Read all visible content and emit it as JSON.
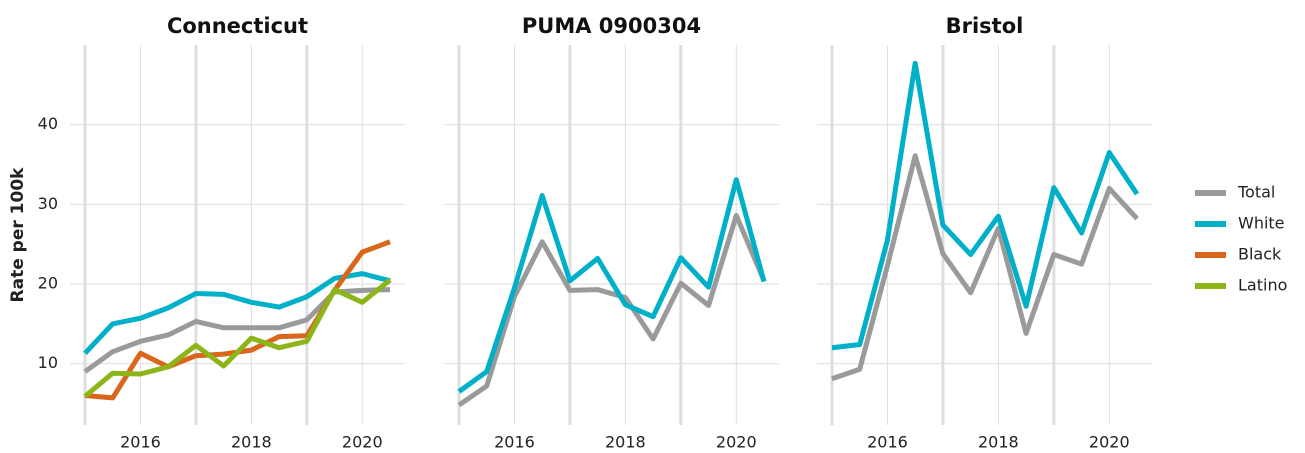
{
  "chart_data": [
    {
      "type": "line",
      "title": "Connecticut",
      "y_label": "Rate per 100k",
      "x": [
        2015,
        2015.5,
        2016,
        2016.5,
        2017,
        2017.5,
        2018,
        2018.5,
        2019,
        2019.5,
        2020,
        2020.5
      ],
      "xlim": [
        2014.73,
        2020.77
      ],
      "xticks": [
        2016,
        2018,
        2020
      ],
      "xminor": [
        2015,
        2017,
        2019
      ],
      "ylim": [
        2.3,
        50
      ],
      "yticks": [
        10,
        20,
        30,
        40
      ],
      "grid": true,
      "series": [
        {
          "name": "Total",
          "color": "#9a9a9a",
          "values": [
            9.0,
            11.5,
            12.8,
            13.6,
            15.3,
            14.5,
            14.5,
            14.5,
            15.5,
            19.0,
            19.2,
            19.3
          ]
        },
        {
          "name": "White",
          "color": "#00b0c8",
          "values": [
            11.3,
            15.0,
            15.7,
            17.0,
            18.8,
            18.7,
            17.7,
            17.1,
            18.4,
            20.7,
            21.3,
            20.4
          ]
        },
        {
          "name": "Black",
          "color": "#d9661b",
          "values": [
            6.0,
            5.7,
            11.3,
            9.6,
            11.0,
            11.2,
            11.7,
            13.4,
            13.5,
            19.2,
            24.0,
            25.3
          ]
        },
        {
          "name": "Latino",
          "color": "#8db51a",
          "values": [
            5.9,
            8.8,
            8.7,
            9.6,
            12.3,
            9.7,
            13.2,
            12.0,
            12.8,
            19.3,
            17.7,
            20.5
          ]
        }
      ]
    },
    {
      "type": "line",
      "title": "PUMA 0900304",
      "x": [
        2015,
        2015.5,
        2016,
        2016.5,
        2017,
        2017.5,
        2018,
        2018.5,
        2019,
        2019.5,
        2020,
        2020.5
      ],
      "xlim": [
        2014.73,
        2020.77
      ],
      "xticks": [
        2016,
        2018,
        2020
      ],
      "xminor": [
        2015,
        2017,
        2019
      ],
      "ylim": [
        2.3,
        50
      ],
      "yticks": [
        10,
        20,
        30,
        40
      ],
      "grid": true,
      "series": [
        {
          "name": "Total",
          "color": "#9a9a9a",
          "values": [
            4.8,
            7.2,
            18.4,
            25.3,
            19.2,
            19.3,
            18.3,
            13.1,
            20.1,
            17.3,
            28.6,
            20.4
          ]
        },
        {
          "name": "White",
          "color": "#00b0c8",
          "values": [
            6.5,
            9.0,
            19.5,
            31.1,
            20.4,
            23.2,
            17.4,
            15.9,
            23.3,
            19.6,
            33.1,
            20.3
          ]
        }
      ]
    },
    {
      "type": "line",
      "title": "Bristol",
      "x": [
        2015,
        2015.5,
        2016,
        2016.5,
        2017,
        2017.5,
        2018,
        2018.5,
        2019,
        2019.5,
        2020,
        2020.5
      ],
      "xlim": [
        2014.73,
        2020.77
      ],
      "xticks": [
        2016,
        2018,
        2020
      ],
      "xminor": [
        2015,
        2017,
        2019
      ],
      "ylim": [
        2.3,
        50
      ],
      "yticks": [
        10,
        20,
        30,
        40
      ],
      "grid": true,
      "series": [
        {
          "name": "Total",
          "color": "#9a9a9a",
          "values": [
            8.1,
            9.3,
            22.3,
            36.1,
            23.8,
            18.9,
            27.0,
            13.8,
            23.7,
            22.5,
            32.0,
            28.2
          ]
        },
        {
          "name": "White",
          "color": "#00b0c8",
          "values": [
            12.0,
            12.4,
            25.5,
            47.7,
            27.4,
            23.7,
            28.5,
            17.2,
            32.1,
            26.4,
            36.5,
            31.3
          ]
        }
      ]
    }
  ]
}
